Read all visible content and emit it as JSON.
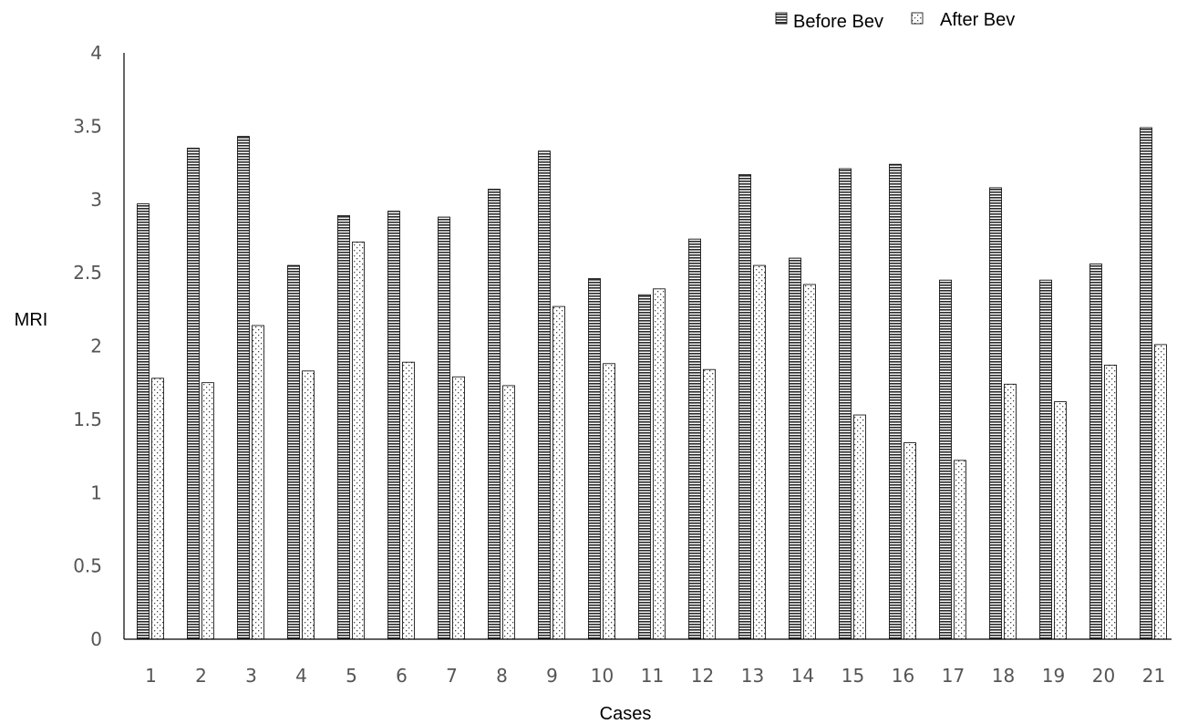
{
  "chart_data": {
    "type": "bar",
    "title": "",
    "xlabel": "Cases",
    "ylabel": "MRI",
    "ylim": [
      0,
      4
    ],
    "yticks": [
      0,
      0.5,
      1,
      1.5,
      2,
      2.5,
      3,
      3.5,
      4
    ],
    "grid": false,
    "legend_position": "top-right",
    "categories": [
      "1",
      "2",
      "3",
      "4",
      "5",
      "6",
      "7",
      "8",
      "9",
      "10",
      "11",
      "12",
      "13",
      "14",
      "15",
      "16",
      "17",
      "18",
      "19",
      "20",
      "21"
    ],
    "series": [
      {
        "name": "Before Bev",
        "pattern": "horizontal-stripes",
        "values": [
          2.97,
          3.35,
          3.43,
          2.55,
          2.89,
          2.92,
          2.88,
          3.07,
          3.33,
          2.46,
          2.35,
          2.73,
          3.17,
          2.6,
          3.21,
          3.24,
          2.45,
          3.08,
          2.45,
          2.56,
          3.49
        ]
      },
      {
        "name": "After Bev",
        "pattern": "dots",
        "values": [
          1.78,
          1.75,
          2.14,
          1.83,
          2.71,
          1.89,
          1.79,
          1.73,
          2.27,
          1.88,
          2.39,
          1.84,
          2.55,
          2.42,
          1.53,
          1.34,
          1.22,
          1.74,
          1.62,
          1.87,
          2.01
        ]
      }
    ]
  }
}
